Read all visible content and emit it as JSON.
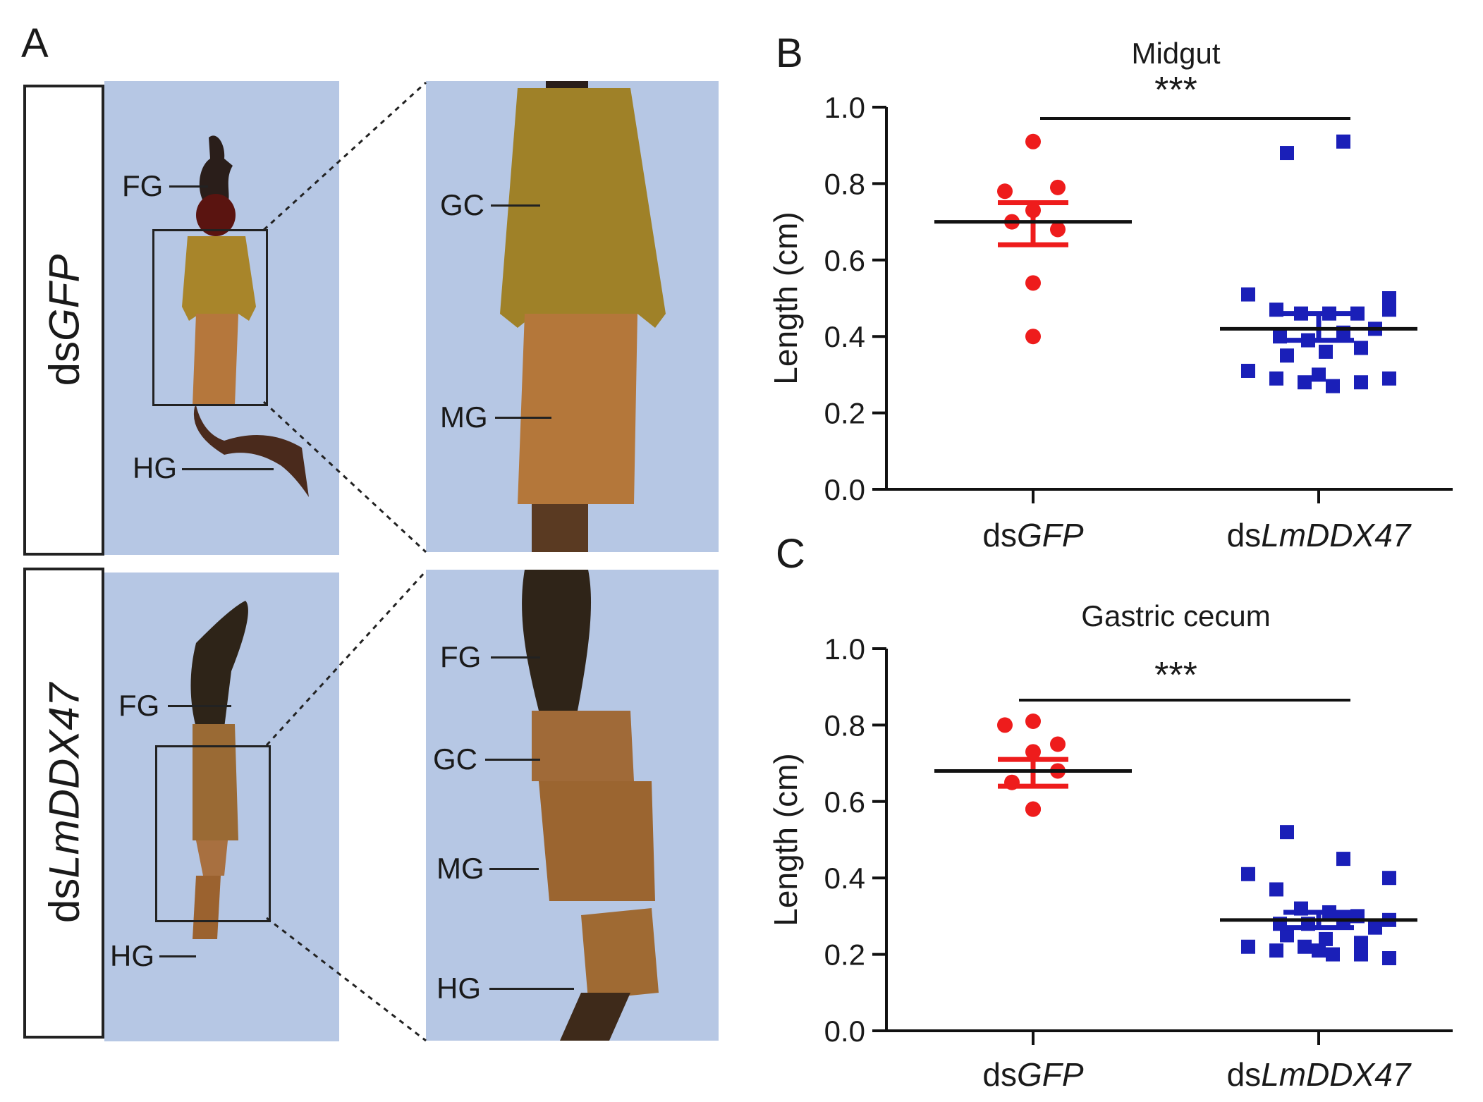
{
  "panel_a": {
    "label": "A",
    "rows": [
      {
        "prefix": "ds",
        "gene": "GFP",
        "overview_labels": [
          "FG",
          "HG"
        ],
        "zoom_labels": [
          "GC",
          "MG"
        ]
      },
      {
        "prefix": "ds",
        "gene": "LmDDX47",
        "overview_labels": [
          "FG",
          "HG"
        ],
        "zoom_labels": [
          "FG",
          "GC",
          "MG",
          "HG"
        ]
      }
    ]
  },
  "colors": {
    "photo_bg": "#b6c7e4",
    "gfp": "#ee1c1c",
    "lmddx47": "#1a1fb8",
    "mean_line": "#111111"
  },
  "chart_data": [
    {
      "panel": "B",
      "type": "scatter",
      "title": "Midgut",
      "ylabel": "Length (cm)",
      "ylim": [
        0,
        1.0
      ],
      "yticks": [
        "0.0",
        "0.2",
        "0.4",
        "0.6",
        "0.8",
        "1.0"
      ],
      "significance": "***",
      "categories": [
        {
          "prefix": "ds",
          "gene": "GFP"
        },
        {
          "prefix": "ds",
          "gene": "LmDDX47"
        }
      ],
      "series": [
        {
          "name": "dsGFP",
          "marker": "circle",
          "values": [
            0.91,
            0.78,
            0.79,
            0.73,
            0.68,
            0.7,
            0.54,
            0.4
          ],
          "mean": 0.7,
          "sem": [
            0.64,
            0.75
          ]
        },
        {
          "name": "dsLmDDX47",
          "marker": "square",
          "values": [
            0.88,
            0.91,
            0.5,
            0.51,
            0.47,
            0.46,
            0.46,
            0.46,
            0.47,
            0.4,
            0.41,
            0.42,
            0.39,
            0.35,
            0.36,
            0.37,
            0.31,
            0.29,
            0.28,
            0.27,
            0.28,
            0.29,
            0.3
          ],
          "mean": 0.42,
          "sem": [
            0.39,
            0.46
          ]
        }
      ]
    },
    {
      "panel": "C",
      "type": "scatter",
      "title": "Gastric cecum",
      "ylabel": "Length (cm)",
      "ylim": [
        0,
        1.0
      ],
      "yticks": [
        "0.0",
        "0.2",
        "0.4",
        "0.6",
        "0.8",
        "1.0"
      ],
      "significance": "***",
      "categories": [
        {
          "prefix": "ds",
          "gene": "GFP"
        },
        {
          "prefix": "ds",
          "gene": "LmDDX47"
        }
      ],
      "series": [
        {
          "name": "dsGFP",
          "marker": "circle",
          "values": [
            0.81,
            0.8,
            0.75,
            0.73,
            0.68,
            0.65,
            0.58,
            0.58
          ],
          "mean": 0.68,
          "sem": [
            0.64,
            0.71
          ]
        },
        {
          "name": "dsLmDDX47",
          "marker": "square",
          "values": [
            0.52,
            0.45,
            0.4,
            0.41,
            0.37,
            0.32,
            0.31,
            0.3,
            0.29,
            0.28,
            0.29,
            0.27,
            0.28,
            0.25,
            0.24,
            0.23,
            0.22,
            0.21,
            0.22,
            0.2,
            0.2,
            0.19,
            0.21
          ],
          "mean": 0.29,
          "sem": [
            0.27,
            0.31
          ]
        }
      ]
    }
  ]
}
